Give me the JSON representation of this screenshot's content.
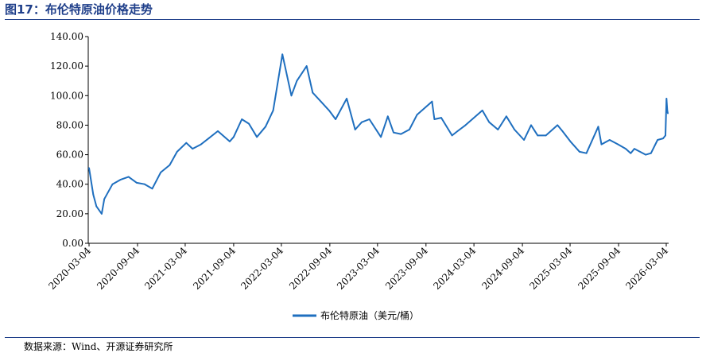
{
  "header": {
    "title": "图17：布伦特原油价格走势"
  },
  "footer": {
    "source": "数据来源：Wind、开源证券研究所"
  },
  "colors": {
    "series": "#1f6fbf",
    "title": "#1f3f8a",
    "axis": "#000000"
  },
  "chart_data": {
    "type": "line",
    "title": "",
    "xlabel": "",
    "ylabel": "",
    "ylim": [
      0,
      140
    ],
    "yticks": [
      "0.00",
      "20.00",
      "40.00",
      "60.00",
      "80.00",
      "100.00",
      "120.00",
      "140.00"
    ],
    "xticks": [
      "2020-03-04",
      "2020-09-04",
      "2021-03-04",
      "2021-09-04",
      "2022-03-04",
      "2022-09-04",
      "2023-03-04",
      "2023-09-04",
      "2024-03-04",
      "2024-09-04",
      "2025-03-04",
      "2025-09-04",
      "2026-03-04"
    ],
    "grid": false,
    "legend": "bottom-center",
    "series": [
      {
        "name": "布伦特原油（美元/桶）",
        "x": [
          "2020-03-04",
          "2020-03-20",
          "2020-04-01",
          "2020-04-21",
          "2020-05-01",
          "2020-06-01",
          "2020-07-01",
          "2020-08-01",
          "2020-09-01",
          "2020-10-01",
          "2020-10-30",
          "2020-12-01",
          "2021-01-04",
          "2021-02-01",
          "2021-03-08",
          "2021-04-01",
          "2021-05-03",
          "2021-06-01",
          "2021-07-06",
          "2021-08-20",
          "2021-09-04",
          "2021-10-05",
          "2021-11-01",
          "2021-12-01",
          "2022-01-03",
          "2022-02-01",
          "2022-03-08",
          "2022-04-11",
          "2022-05-02",
          "2022-06-08",
          "2022-07-01",
          "2022-08-01",
          "2022-09-01",
          "2022-09-26",
          "2022-11-07",
          "2022-12-09",
          "2023-01-03",
          "2023-02-01",
          "2023-03-17",
          "2023-04-12",
          "2023-05-04",
          "2023-06-01",
          "2023-07-03",
          "2023-08-01",
          "2023-09-27",
          "2023-10-06",
          "2023-11-01",
          "2023-12-12",
          "2024-01-02",
          "2024-02-01",
          "2024-04-05",
          "2024-05-01",
          "2024-06-03",
          "2024-07-05",
          "2024-08-05",
          "2024-09-10",
          "2024-10-07",
          "2024-11-01",
          "2024-12-02",
          "2025-01-15",
          "2025-02-03",
          "2025-03-05",
          "2025-04-09",
          "2025-05-05",
          "2025-06-19",
          "2025-07-01",
          "2025-08-01",
          "2025-09-02",
          "2025-10-01",
          "2025-10-20",
          "2025-11-03",
          "2025-12-16",
          "2026-01-05",
          "2026-01-30",
          "2026-02-20",
          "2026-03-01",
          "2026-03-05",
          "2026-03-08",
          "2026-03-10"
        ],
        "values": [
          51,
          33,
          25,
          20,
          30,
          40,
          43,
          45,
          41,
          40,
          37,
          48,
          53,
          62,
          68,
          64,
          67,
          71,
          76,
          69,
          72,
          84,
          81,
          72,
          79,
          90,
          128,
          100,
          110,
          120,
          102,
          96,
          90,
          84,
          98,
          77,
          82,
          84,
          72,
          86,
          75,
          74,
          77,
          87,
          96,
          84,
          85,
          73,
          76,
          80,
          90,
          82,
          77,
          86,
          77,
          70,
          80,
          73,
          73,
          80,
          76,
          69,
          62,
          61,
          79,
          67,
          70,
          67,
          64,
          61,
          64,
          60,
          61,
          70,
          71,
          73,
          98,
          90,
          88
        ]
      }
    ]
  }
}
